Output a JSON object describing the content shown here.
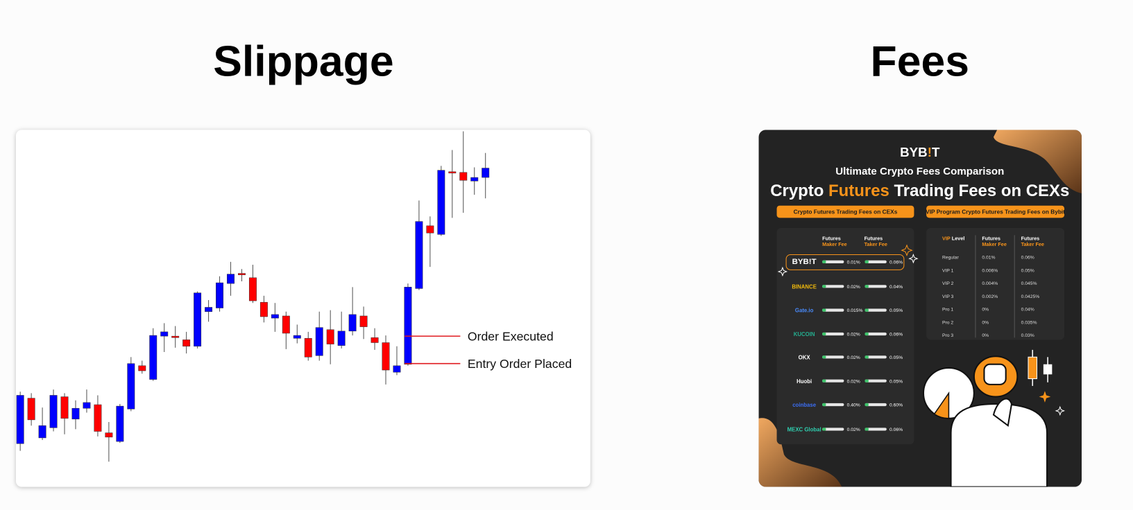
{
  "chart_data": {
    "type": "candlestick",
    "title": "Slippage",
    "open": [
      85,
      148,
      93,
      107,
      150,
      119,
      134,
      139,
      100,
      88,
      133,
      193,
      174,
      234,
      234,
      229,
      220,
      268,
      273,
      307,
      321,
      315,
      281,
      259,
      262,
      231,
      231,
      207,
      243,
      221,
      241,
      262,
      232,
      225,
      184,
      195,
      300,
      387,
      375,
      462,
      461,
      449,
      454
    ],
    "high": [
      157,
      155,
      135,
      160,
      155,
      145,
      160,
      152,
      115,
      140,
      205,
      200,
      245,
      252,
      248,
      240,
      296,
      284,
      317,
      337,
      327,
      333,
      290,
      280,
      268,
      250,
      240,
      268,
      270,
      268,
      302,
      275,
      245,
      235,
      220,
      307,
      422,
      400,
      470,
      492,
      518,
      468,
      488
    ],
    "low": [
      75,
      110,
      90,
      102,
      98,
      105,
      128,
      95,
      60,
      86,
      130,
      182,
      172,
      212,
      218,
      210,
      217,
      254,
      268,
      290,
      310,
      280,
      253,
      240,
      216,
      224,
      200,
      200,
      195,
      217,
      235,
      230,
      215,
      167,
      180,
      193,
      298,
      330,
      373,
      398,
      405,
      430,
      425
    ],
    "close": [
      152,
      118,
      110,
      152,
      120,
      134,
      142,
      102,
      94,
      137,
      196,
      186,
      235,
      240,
      232,
      220,
      294,
      274,
      308,
      320,
      319,
      283,
      261,
      264,
      238,
      235,
      205,
      246,
      223,
      241,
      264,
      247,
      225,
      187,
      193,
      302,
      393,
      377,
      464,
      460,
      450,
      454,
      467
    ],
    "up_color": "#0000ff",
    "down_color": "#ff0000",
    "ylim": [
      25,
      520
    ],
    "annotations": [
      {
        "text": "Order Executed",
        "value": 234,
        "color": "#e0191f"
      },
      {
        "text": "Entry Order Placed",
        "value": 196,
        "color": "#e0191f"
      }
    ]
  },
  "fees": {
    "title": "Fees",
    "logo": [
      "BYB",
      "!",
      "T"
    ],
    "subtitle": "Ultimate Crypto Fees Comparison",
    "headline": [
      "Crypto ",
      "Futures",
      " Trading Fees on CEXs"
    ],
    "left_tab": "Crypto Futures Trading Fees on CEXs",
    "right_tab": "VIP Program Crypto Futures Trading Fees on Bybit",
    "exchanges": {
      "header": [
        [
          "Futures",
          "Maker Fee"
        ],
        [
          "Futures",
          "Taker Fee"
        ]
      ],
      "rows": [
        {
          "name": "BYB!T",
          "maker": "0.01%",
          "taker": "0.06%",
          "color": "#ffffff"
        },
        {
          "name": "BINANCE",
          "maker": "0.02%",
          "taker": "0.04%",
          "color": "#f0b90b"
        },
        {
          "name": "Gate.io",
          "maker": "0.015%",
          "taker": "0.05%",
          "color": "#4a8cff"
        },
        {
          "name": "KUCOIN",
          "maker": "0.02%",
          "taker": "0.06%",
          "color": "#24ae8f"
        },
        {
          "name": "OKX",
          "maker": "0.02%",
          "taker": "0.05%",
          "color": "#ffffff"
        },
        {
          "name": "Huobi",
          "maker": "0.02%",
          "taker": "0.05%",
          "color": "#ffffff"
        },
        {
          "name": "coinbase",
          "maker": "0.40%",
          "taker": "0.60%",
          "color": "#3b6ef5"
        },
        {
          "name": "MEXC Global",
          "maker": "0.02%",
          "taker": "0.06%",
          "color": "#2fcfb0"
        }
      ]
    },
    "vip": {
      "header": [
        [
          "VIP",
          "Level"
        ],
        [
          "Futures",
          "Maker Fee"
        ],
        [
          "Futures",
          "Taker Fee"
        ]
      ],
      "rows": [
        [
          "Regular",
          "0.01%",
          "0.06%"
        ],
        [
          "VIP 1",
          "0.006%",
          "0.05%"
        ],
        [
          "VIP 2",
          "0.004%",
          "0.045%"
        ],
        [
          "VIP 3",
          "0.002%",
          "0.0425%"
        ],
        [
          "Pro 1",
          "0%",
          "0.04%"
        ],
        [
          "Pro 2",
          "0%",
          "0.035%"
        ],
        [
          "Pro 3",
          "0%",
          "0.03%"
        ]
      ]
    }
  }
}
